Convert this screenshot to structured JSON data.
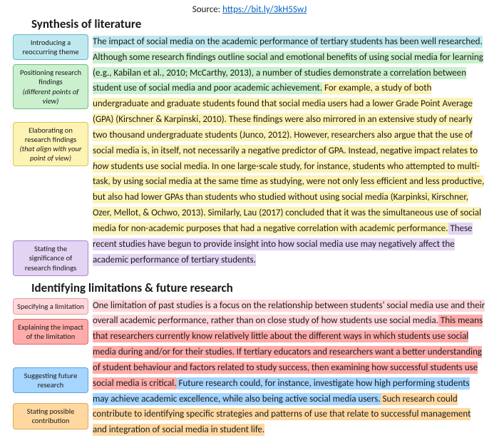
{
  "source": {
    "prefix": "Source: ",
    "url_text": "https://bit.ly/3kH5SwJ",
    "url_href": "https://bit.ly/3kH5SwJ"
  },
  "colors": {
    "cyan": {
      "bg": "#bfe9ef",
      "border": "#5fb9c9"
    },
    "green": {
      "bg": "#caf0ce",
      "border": "#6fc07f"
    },
    "yellow": {
      "bg": "#fdf3b5",
      "border": "#d6c94f"
    },
    "purple": {
      "bg": "#e3d4f3",
      "border": "#a886d1"
    },
    "pink": {
      "bg": "#ffd7db",
      "border": "#e79aa2"
    },
    "red": {
      "bg": "#ffacaa",
      "border": "#e06a66"
    },
    "blue": {
      "bg": "#a6d5ff",
      "border": "#5fa3e0"
    },
    "orange": {
      "bg": "#ffd8a0",
      "border": "#e0a84f"
    }
  },
  "section1": {
    "title": "Synthesis of literature",
    "labels": [
      {
        "color": "cyan",
        "text": "Introducing a reoccurring theme",
        "tail_italic": null,
        "spacer_before": 0
      },
      {
        "color": "green",
        "text": "Positioning research findings",
        "tail_italic": "(different points of view)",
        "spacer_before": 0
      },
      {
        "color": "yellow",
        "text": "Elaborating on research findings",
        "tail_italic": "(that align with your point of view)",
        "spacer_before": 6
      },
      {
        "color": "purple",
        "text": "Stating the significance of research findings",
        "tail_italic": null,
        "spacer_before": 92
      }
    ],
    "runs": [
      {
        "color": "cyan",
        "text": "The impact of social media on the academic performance of tertiary students has been well researched."
      },
      {
        "color": "green",
        "text": " Although some research findings outline social and emotional benefits of using social media for learning (e.g., Kabilan et al., 2010; McCarthy, 2013), a number of studies demonstrate a correlation between student use of social media and poor academic achievement."
      },
      {
        "color": "yellow",
        "text": " For example, a study of both undergraduate and graduate students found that social media users had a lower Grade Point Average (GPA) (Kirschner & Karpinski, 2010). These findings were also mirrored in an extensive study of nearly two thousand undergraduate students (Junco, 2012). However, researchers also argue that the use of social media is, in itself, not necessarily a negative predictor of GPA. Instead, negative impact relates to <em>how</em> students use social media. In one large-scale study, for instance, students who attempted to multi-task, by using social media at the same time as studying, were not only less efficient and less productive, but also had lower GPAs than students who studied without using social media (Karpinksi, Kirschner, Ozer, Mellot, & Ochwo, 2013). Similarly, Lau (2017) concluded that it was the simultaneous use of social media for non-academic purposes that had a negative correlation with academic performance."
      },
      {
        "color": "purple",
        "text": " These recent studies have begun to provide insight into how social media use may negatively affect the academic performance of tertiary students."
      }
    ]
  },
  "section2": {
    "title": "Identifying limitations & future research",
    "labels": [
      {
        "color": "pink",
        "text": "Specifying a limitation",
        "tail_italic": null,
        "spacer_before": 0
      },
      {
        "color": "red",
        "text": "Explaining the impact of the limitation",
        "tail_italic": null,
        "spacer_before": 0
      },
      {
        "color": "blue",
        "text": "Suggesting future research",
        "tail_italic": null,
        "spacer_before": 20
      },
      {
        "color": "orange",
        "text": "Stating possible contribution",
        "tail_italic": null,
        "spacer_before": 2
      }
    ],
    "runs": [
      {
        "color": "pink",
        "text": "One limitation of past studies is a focus on the relationship between students' social media use and their overall academic performance, rather than on close study of how students use social media."
      },
      {
        "color": "red",
        "text": " This means that researchers currently know relatively little about the different ways in which students use social media during and/or for their studies. If tertiary educators and researchers want a better understanding of student behaviour and factors related to study success, then examining how successful students use social media is critical."
      },
      {
        "color": "blue",
        "text": " Future research could, for instance, investigate how high performing students may achieve academic excellence, while also being active social media users."
      },
      {
        "color": "orange",
        "text": " Such research could contribute to identifying specific strategies and patterns of use that relate to successful management and integration of social media in student life."
      }
    ]
  }
}
